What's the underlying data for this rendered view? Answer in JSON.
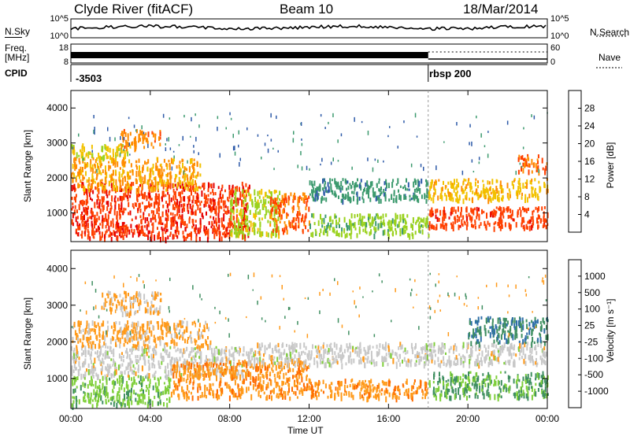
{
  "header": {
    "station": "Clyde River (fitACF)",
    "beam": "Beam 10",
    "date": "18/Mar/2014"
  },
  "status_panel": {
    "nsky_label": "N.Sky",
    "nsky_ticks": [
      "10^5",
      "10^0"
    ],
    "freq_label_1": "Freq.",
    "freq_label_2": "[MHz]",
    "freq_ticks": [
      "18",
      "8"
    ],
    "nsearch_label": "N.Search",
    "nsearch_ticks": [
      "10^5",
      "10^0"
    ],
    "nave_label": "Nave",
    "nave_ticks": [
      "60",
      "0"
    ],
    "cpid_label": "CPID",
    "cpid_segments": [
      {
        "label": "-3503",
        "start_hour": 0,
        "end_hour": 18
      },
      {
        "label": "rbsp 200",
        "start_hour": 18,
        "end_hour": 24
      }
    ]
  },
  "axes": {
    "xlabel": "Time UT",
    "xticks": [
      "00:00",
      "04:00",
      "08:00",
      "12:00",
      "16:00",
      "20:00",
      "00:00"
    ],
    "ylabel": "Slant Range [km]",
    "yticks": [
      "1000",
      "2000",
      "3000",
      "4000"
    ]
  },
  "power_colorbar": {
    "label": "Power [dB]",
    "ticks": [
      "28",
      "24",
      "20",
      "16",
      "12",
      "8",
      "4"
    ],
    "colors": [
      "#e60000",
      "#ff4000",
      "#ff8c00",
      "#f2c200",
      "#9bd21e",
      "#3c9a6e",
      "#2d5aa8",
      "#0000ff"
    ]
  },
  "velocity_colorbar": {
    "label": "Velocity [m s⁻¹]",
    "ticks": [
      "1000",
      "500",
      "100",
      "25",
      "-25",
      "-100",
      "-500",
      "-1000"
    ],
    "colors": [
      "#2a3fb0",
      "#2f6fa8",
      "#3f8f60",
      "#7fcf3a",
      "#c8c8c8",
      "#ff9a1a",
      "#ff6a00",
      "#ff2a00",
      "#e00000"
    ]
  },
  "chart_data": [
    {
      "type": "heatmap",
      "name": "Power",
      "xlabel": "Time UT",
      "ylabel": "Slant Range [km]",
      "xlim_hours": [
        0,
        24
      ],
      "ylim_km": [
        180,
        4500
      ],
      "zlabel": "Power [dB]",
      "zlim": [
        0,
        30
      ],
      "regions": [
        {
          "t0": 0.0,
          "t1": 9.0,
          "r0": 300,
          "r1": 1900,
          "z": 27
        },
        {
          "t0": 0.0,
          "t1": 6.5,
          "r0": 1700,
          "r1": 2600,
          "z": 20
        },
        {
          "t0": 0.0,
          "t1": 3.0,
          "r0": 2600,
          "r1": 3000,
          "z": 16
        },
        {
          "t0": 2.5,
          "t1": 4.5,
          "r0": 2900,
          "r1": 3400,
          "z": 22
        },
        {
          "t0": 8.0,
          "t1": 10.5,
          "r0": 400,
          "r1": 1700,
          "z": 14
        },
        {
          "t0": 10.0,
          "t1": 12.0,
          "r0": 500,
          "r1": 1600,
          "z": 24
        },
        {
          "t0": 12.0,
          "t1": 18.0,
          "r0": 400,
          "r1": 1000,
          "z": 12
        },
        {
          "t0": 12.0,
          "t1": 18.0,
          "r0": 1400,
          "r1": 2000,
          "z": 8
        },
        {
          "t0": 18.0,
          "t1": 24.0,
          "r0": 600,
          "r1": 1200,
          "z": 26
        },
        {
          "t0": 18.0,
          "t1": 24.0,
          "r0": 1400,
          "r1": 2000,
          "z": 18
        },
        {
          "t0": 22.5,
          "t1": 24.0,
          "r0": 2200,
          "r1": 2700,
          "z": 24
        }
      ]
    },
    {
      "type": "heatmap",
      "name": "Velocity",
      "xlabel": "Time UT",
      "ylabel": "Slant Range [km]",
      "xlim_hours": [
        0,
        24
      ],
      "ylim_km": [
        180,
        4500
      ],
      "zlabel": "Velocity [m s⁻¹]",
      "zlim": [
        -1000,
        1000
      ],
      "regions": [
        {
          "t0": 0.0,
          "t1": 5.0,
          "r0": 300,
          "r1": 1100,
          "z": 300
        },
        {
          "t0": 0.0,
          "t1": 9.0,
          "r0": 1100,
          "r1": 1900,
          "z": 0
        },
        {
          "t0": 0.0,
          "t1": 7.0,
          "r0": 1900,
          "r1": 2600,
          "z": -200
        },
        {
          "t0": 1.5,
          "t1": 4.5,
          "r0": 2800,
          "r1": 3400,
          "z": -150
        },
        {
          "t0": 5.0,
          "t1": 12.0,
          "r0": 500,
          "r1": 1500,
          "z": -300
        },
        {
          "t0": 9.0,
          "t1": 18.0,
          "r0": 1400,
          "r1": 2000,
          "z": 0
        },
        {
          "t0": 12.0,
          "t1": 18.0,
          "r0": 500,
          "r1": 1000,
          "z": -300
        },
        {
          "t0": 18.0,
          "t1": 24.0,
          "r0": 500,
          "r1": 1200,
          "z": 400
        },
        {
          "t0": 18.0,
          "t1": 24.0,
          "r0": 1400,
          "r1": 2000,
          "z": 0
        },
        {
          "t0": 20.0,
          "t1": 24.0,
          "r0": 2000,
          "r1": 2700,
          "z": 600
        }
      ]
    }
  ]
}
